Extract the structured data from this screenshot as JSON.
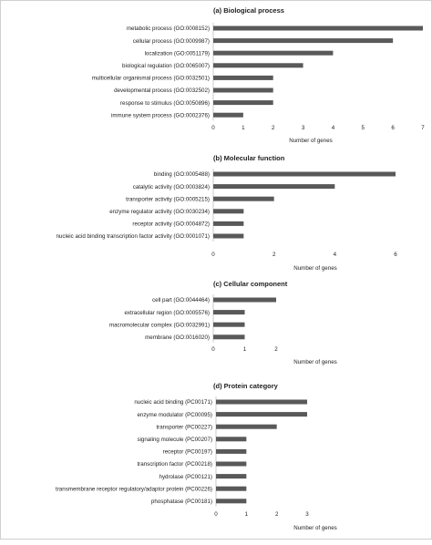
{
  "chart_data": [
    {
      "type": "bar",
      "orientation": "horizontal",
      "title": "(a) Biological process",
      "xlabel": "Number of genes",
      "xlim": [
        0,
        7
      ],
      "xticks": [
        "0",
        "1",
        "2",
        "3",
        "4",
        "5",
        "6",
        "7"
      ],
      "categories": [
        "metabolic process (GO:0008152)",
        "cellular process (GO:0009987)",
        "localization (GO:0051179)",
        "biological regulation (GO:0065007)",
        "multicellular organismal process (GO:0032501)",
        "developmental process (GO:0032502)",
        "response to stimulus (GO:0050896)",
        "immune system process (GO:0002376)"
      ],
      "values": [
        7,
        6,
        4,
        3,
        2,
        2,
        2,
        1
      ],
      "color": "#595959"
    },
    {
      "type": "bar",
      "orientation": "horizontal",
      "title": "(b) Molecular function",
      "xlabel": "Number of genes",
      "xlim": [
        0,
        6
      ],
      "xticks": [
        "0",
        "2",
        "4",
        "6"
      ],
      "categories": [
        "binding (GO:0005488)",
        "catalytic activity (GO:0003824)",
        "transporter activity (GO:0005215)",
        "enzyme regulator activity (GO:0030234)",
        "receptor activity (GO:0004872)",
        "nucleic acid binding transcription factor activity (GO:0001071)"
      ],
      "values": [
        6,
        4,
        2,
        1,
        1,
        1
      ],
      "color": "#595959"
    },
    {
      "type": "bar",
      "orientation": "horizontal",
      "title": "(c) Cellular component",
      "xlabel": "Number of genes",
      "xlim": [
        0,
        2
      ],
      "xticks": [
        "0",
        "1",
        "2"
      ],
      "categories": [
        "cell part (GO:0044464)",
        "extracellular region (GO:0005576)",
        "macromolecular complex (GO:0032991)",
        "membrane (GO:0016020)"
      ],
      "values": [
        2,
        1,
        1,
        1
      ],
      "color": "#595959"
    },
    {
      "type": "bar",
      "orientation": "horizontal",
      "title": "(d) Protein category",
      "xlabel": "Number of genes",
      "xlim": [
        0,
        3
      ],
      "xticks": [
        "0",
        "1",
        "2",
        "3"
      ],
      "categories": [
        "nucleic acid binding (PC00171)",
        "enzyme modulator (PC00095)",
        "transporter (PC00227)",
        "signaling molecule (PC00207)",
        "receptor (PC00197)",
        "transcription factor (PC00218)",
        "hydrolase (PC00121)",
        "transmembrane receptor regulatory/adaptor protein (PC00226)",
        "phosphatase (PC00181)"
      ],
      "values": [
        3,
        3,
        2,
        1,
        1,
        1,
        1,
        1,
        1
      ],
      "color": "#595959"
    }
  ]
}
